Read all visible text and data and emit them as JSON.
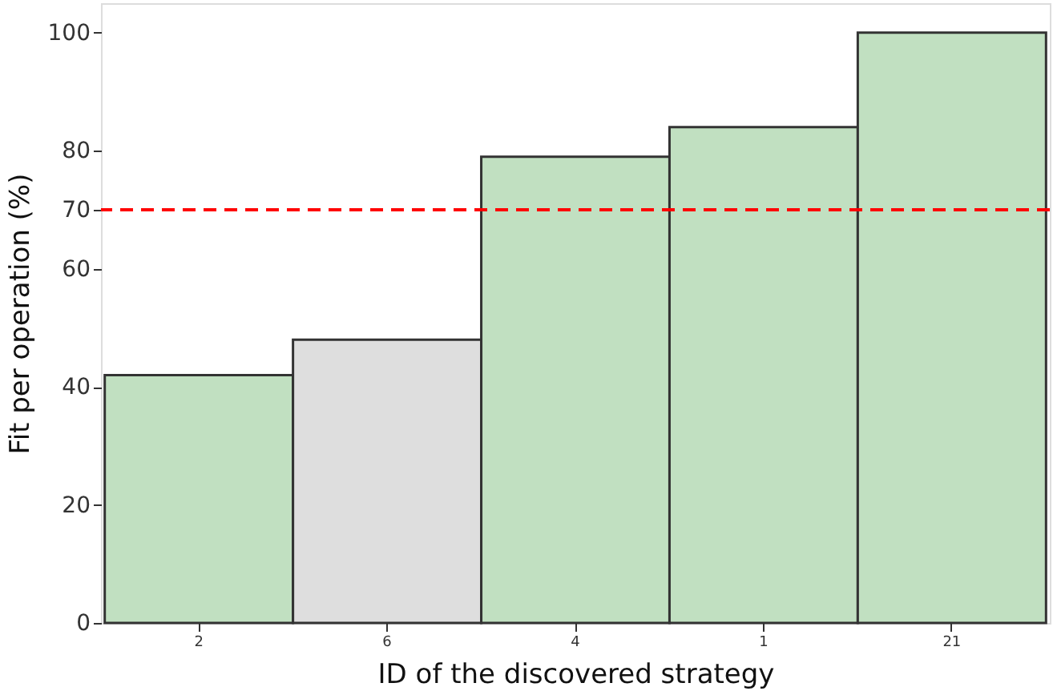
{
  "chart_data": {
    "type": "bar",
    "xlabel": "ID of the discovered strategy",
    "ylabel": "Fit per operation (%)",
    "categories": [
      "2",
      "6",
      "4",
      "1",
      "21"
    ],
    "values": [
      42,
      48,
      79,
      84,
      100
    ],
    "colors": [
      "#c1e0c1",
      "#dedede",
      "#c1e0c1",
      "#c1e0c1",
      "#c1e0c1"
    ],
    "ylim": [
      0,
      105
    ],
    "yticks": [
      0,
      20,
      40,
      60,
      70,
      80,
      100
    ],
    "ref_lines": [
      {
        "axis": "y",
        "value": 70,
        "color": "#ff0000",
        "line_style": "dashed"
      }
    ],
    "grid": false
  }
}
